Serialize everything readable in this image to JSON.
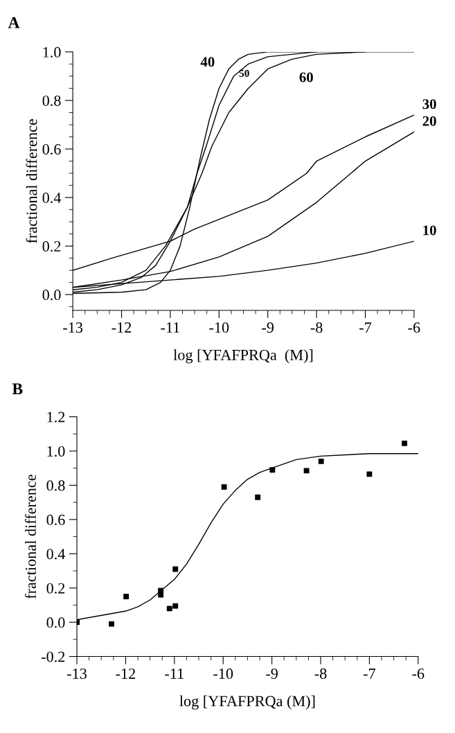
{
  "chart_data": [
    {
      "type": "line",
      "title": "A",
      "xlabel": "log [YFAFPRQa  (M)]",
      "ylabel": "fractional difference",
      "xlim": [
        -13,
        -6
      ],
      "ylim": [
        -0.065,
        1.0
      ],
      "xticks": [
        {
          "value": -13,
          "label": "-13"
        },
        {
          "value": -12,
          "label": "-12"
        },
        {
          "value": -11,
          "label": "-11"
        },
        {
          "value": -10,
          "label": "-10"
        },
        {
          "value": -9,
          "label": "-9"
        },
        {
          "value": -8,
          "label": "-8"
        },
        {
          "value": -7,
          "label": "-7"
        },
        {
          "value": -6,
          "label": "-6"
        }
      ],
      "yticks": [
        {
          "value": 0,
          "label": "0.0"
        },
        {
          "value": 0.2,
          "label": "0.2"
        },
        {
          "value": 0.4,
          "label": "0.4"
        },
        {
          "value": 0.6,
          "label": "0.6"
        },
        {
          "value": 0.8,
          "label": "0.8"
        },
        {
          "value": 1.0,
          "label": "1.0"
        }
      ],
      "grid": false,
      "line_style": "solid",
      "series": [
        {
          "name": "40",
          "color": "#000000",
          "x": [
            -13,
            -12,
            -11.5,
            -11.2,
            -11,
            -10.8,
            -10.6,
            -10.4,
            -10.2,
            -10,
            -9.8,
            -9.6,
            -9.4,
            -9,
            -8,
            -7,
            -6
          ],
          "values": [
            0.005,
            0.01,
            0.02,
            0.05,
            0.1,
            0.2,
            0.36,
            0.55,
            0.72,
            0.85,
            0.93,
            0.97,
            0.99,
            1.0,
            1.0,
            1.0,
            1.0
          ]
        },
        {
          "name": "50",
          "color": "#000000",
          "x": [
            -13,
            -12.5,
            -12,
            -11.6,
            -11.3,
            -11,
            -10.65,
            -10.45,
            -10.25,
            -10,
            -9.7,
            -9.4,
            -9,
            -8.5,
            -8
          ],
          "values": [
            0.01,
            0.02,
            0.04,
            0.07,
            0.12,
            0.22,
            0.36,
            0.5,
            0.62,
            0.78,
            0.9,
            0.95,
            0.98,
            0.99,
            1.0
          ]
        },
        {
          "name": "60",
          "color": "#000000",
          "x": [
            -13,
            -12.5,
            -12,
            -11.5,
            -11.1,
            -10.65,
            -10.35,
            -10.15,
            -9.8,
            -9.4,
            -9,
            -8.5,
            -8,
            -7
          ],
          "values": [
            0.02,
            0.03,
            0.05,
            0.1,
            0.2,
            0.36,
            0.5,
            0.61,
            0.75,
            0.85,
            0.93,
            0.97,
            0.99,
            1.0
          ]
        },
        {
          "name": "30",
          "color": "#000000",
          "x": [
            -13,
            -12.2,
            -11,
            -10.5,
            -10,
            -9,
            -8.2,
            -8,
            -7,
            -6
          ],
          "values": [
            0.1,
            0.15,
            0.22,
            0.27,
            0.31,
            0.39,
            0.5,
            0.55,
            0.65,
            0.74
          ]
        },
        {
          "name": "20",
          "color": "#000000",
          "x": [
            -13,
            -12,
            -11,
            -10,
            -9,
            -8,
            -7,
            -6
          ],
          "values": [
            0.03,
            0.06,
            0.095,
            0.155,
            0.24,
            0.38,
            0.55,
            0.67
          ]
        },
        {
          "name": "10",
          "color": "#000000",
          "x": [
            -13,
            -12,
            -11,
            -10,
            -9,
            -8,
            -7,
            -6
          ],
          "values": [
            0.03,
            0.045,
            0.06,
            0.075,
            0.1,
            0.13,
            0.17,
            0.22
          ]
        }
      ]
    },
    {
      "type": "scatter",
      "title": "B",
      "xlabel": "log [YFAFPRQa (M)]",
      "ylabel": "fractional difference",
      "xlim": [
        -13,
        -6
      ],
      "ylim": [
        -0.2,
        1.2
      ],
      "xticks": [
        {
          "value": -13,
          "label": "-13"
        },
        {
          "value": -12,
          "label": "-12"
        },
        {
          "value": -11,
          "label": "-11"
        },
        {
          "value": -10,
          "label": "-10"
        },
        {
          "value": -9,
          "label": "-9"
        },
        {
          "value": -8,
          "label": "-8"
        },
        {
          "value": -7,
          "label": "-7"
        },
        {
          "value": -6,
          "label": "-6"
        }
      ],
      "yticks": [
        {
          "value": -0.2,
          "label": "-0.2"
        },
        {
          "value": 0,
          "label": "0.0"
        },
        {
          "value": 0.2,
          "label": "0.2"
        },
        {
          "value": 0.4,
          "label": "0.4"
        },
        {
          "value": 0.6,
          "label": "0.6"
        },
        {
          "value": 0.8,
          "label": "0.8"
        },
        {
          "value": 1.0,
          "label": "1.0"
        },
        {
          "value": 1.2,
          "label": "1.2"
        }
      ],
      "grid": false,
      "series": [
        {
          "type": "scatter",
          "marker": "square",
          "color": "#000000",
          "x": [
            -13,
            -12.29,
            -11.99,
            -11.28,
            -11.28,
            -11.1,
            -10.98,
            -10.98,
            -9.98,
            -9.29,
            -8.99,
            -8.29,
            -7.99,
            -7.0,
            -6.28
          ],
          "values": [
            0.0,
            -0.01,
            0.15,
            0.185,
            0.16,
            0.08,
            0.095,
            0.31,
            0.79,
            0.73,
            0.89,
            0.885,
            0.94,
            0.865,
            1.045
          ]
        },
        {
          "type": "line",
          "color": "#000000",
          "x": [
            -13,
            -12.5,
            -12,
            -11.75,
            -11.5,
            -11,
            -10.75,
            -10.5,
            -10.25,
            -10,
            -9.75,
            -9.5,
            -9.25,
            -9,
            -8.5,
            -8,
            -7,
            -6
          ],
          "values": [
            0.015,
            0.04,
            0.065,
            0.09,
            0.13,
            0.25,
            0.34,
            0.455,
            0.58,
            0.69,
            0.77,
            0.835,
            0.875,
            0.9,
            0.95,
            0.97,
            0.985,
            0.985
          ]
        }
      ]
    }
  ]
}
